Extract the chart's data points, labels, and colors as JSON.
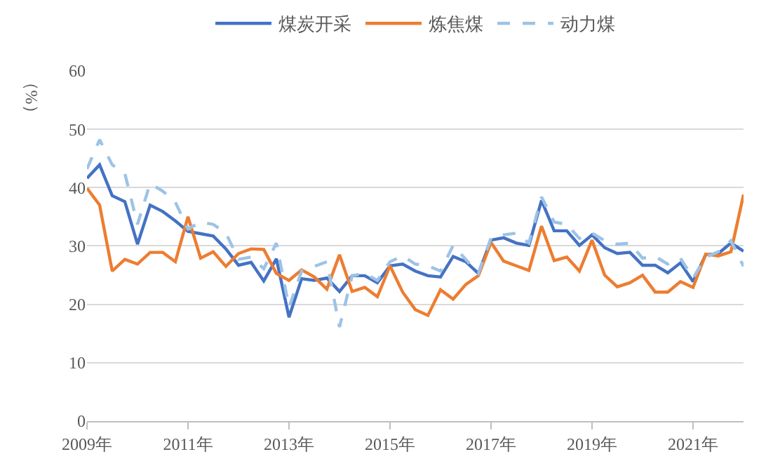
{
  "chart_data": {
    "type": "line",
    "ylabel": "（%）",
    "x": [
      2009,
      2009.25,
      2009.5,
      2009.75,
      2010,
      2010.25,
      2010.5,
      2010.75,
      2011,
      2011.25,
      2011.5,
      2011.75,
      2012,
      2012.25,
      2012.5,
      2012.75,
      2013,
      2013.25,
      2013.5,
      2013.75,
      2014,
      2014.25,
      2014.5,
      2014.75,
      2015,
      2015.25,
      2015.5,
      2015.75,
      2016,
      2016.25,
      2016.5,
      2016.75,
      2017,
      2017.25,
      2017.5,
      2017.75,
      2018,
      2018.25,
      2018.5,
      2018.75,
      2019,
      2019.25,
      2019.5,
      2019.75,
      2020,
      2020.25,
      2020.5,
      2020.75,
      2021,
      2021.25,
      2021.5,
      2021.75,
      2022
    ],
    "series": [
      {
        "name": "煤炭开采",
        "color": "#4472c4",
        "line_style": "solid",
        "values": [
          41.6,
          43.9,
          38.6,
          37.6,
          30.3,
          37.0,
          35.9,
          34.3,
          32.5,
          32.1,
          31.7,
          29.5,
          26.7,
          27.2,
          24.0,
          27.8,
          17.8,
          24.4,
          24.1,
          24.5,
          22.2,
          24.9,
          24.9,
          23.7,
          26.6,
          26.9,
          25.7,
          24.9,
          24.7,
          28.2,
          27.3,
          25.3,
          31.0,
          31.4,
          30.5,
          30.1,
          37.8,
          32.6,
          32.6,
          30.1,
          31.9,
          29.7,
          28.7,
          28.9,
          26.7,
          26.7,
          25.4,
          27.1,
          23.9,
          28.5,
          28.7,
          30.5,
          29.1
        ]
      },
      {
        "name": "炼焦煤",
        "color": "#ed7d31",
        "line_style": "solid",
        "values": [
          39.9,
          37.0,
          25.7,
          27.7,
          26.9,
          28.9,
          28.9,
          27.3,
          35.0,
          27.9,
          29.0,
          26.5,
          28.7,
          29.5,
          29.4,
          25.3,
          24.1,
          25.9,
          24.7,
          22.6,
          28.5,
          22.2,
          22.9,
          21.3,
          26.6,
          22.1,
          19.1,
          18.1,
          22.5,
          20.9,
          23.4,
          24.9,
          30.6,
          27.4,
          26.6,
          25.8,
          33.4,
          27.5,
          28.1,
          25.7,
          31.0,
          25.0,
          23.0,
          23.7,
          25.0,
          22.1,
          22.1,
          23.9,
          22.9,
          28.6,
          28.3,
          29.0,
          38.8
        ]
      },
      {
        "name": "动力煤",
        "color": "#9dc3e6",
        "line_style": "dashed",
        "values": [
          43.2,
          48.2,
          43.9,
          42.4,
          33.7,
          40.7,
          39.4,
          37.5,
          32.9,
          34.1,
          33.7,
          32.2,
          27.7,
          28.1,
          26.1,
          30.5,
          19.5,
          25.7,
          26.5,
          27.3,
          16.1,
          24.9,
          25.3,
          24.1,
          27.3,
          28.3,
          26.9,
          26.6,
          25.7,
          30.1,
          27.7,
          25.3,
          31.4,
          31.9,
          32.2,
          30.5,
          38.4,
          34.1,
          33.7,
          31.3,
          32.2,
          30.9,
          30.3,
          30.5,
          27.9,
          28.2,
          26.9,
          27.9,
          24.5,
          28.1,
          29.0,
          30.9,
          26.5
        ]
      }
    ],
    "xlim": [
      2009,
      2022
    ],
    "xticks": [
      {
        "value": 2009,
        "label": "2009年"
      },
      {
        "value": 2011,
        "label": "2011年"
      },
      {
        "value": 2013,
        "label": "2013年"
      },
      {
        "value": 2015,
        "label": "2015年"
      },
      {
        "value": 2017,
        "label": "2017年"
      },
      {
        "value": 2019,
        "label": "2019年"
      },
      {
        "value": 2021,
        "label": "2021年"
      }
    ],
    "ylim": [
      0,
      60
    ],
    "yticks": [
      0,
      10,
      20,
      30,
      40,
      50,
      60
    ],
    "grid": "y",
    "legend": "top",
    "marker": "none"
  }
}
